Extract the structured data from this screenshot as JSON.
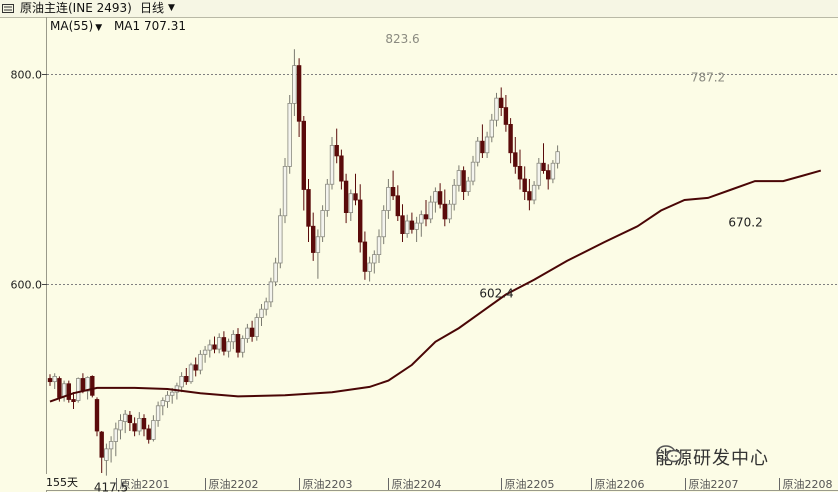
{
  "header": {
    "title": "原油主连(INE 2493)",
    "period": "日线"
  },
  "legend": {
    "ma_label": "MA(55)",
    "ma1_label": "MA1",
    "ma1_value": "707.31"
  },
  "watermark": {
    "text": "能源研发中心",
    "icon": "wechat-icon"
  },
  "day_count": "155天",
  "colors": {
    "up": "#cfcfcf",
    "down": "#5a0b0b",
    "ma": "#4a0606",
    "grid": "#808080"
  },
  "chart_data": {
    "type": "candlestick",
    "title": "",
    "y_ticks": [
      {
        "value": 600,
        "label": "600.0"
      },
      {
        "value": 800,
        "label": "800.0"
      }
    ],
    "ylim": [
      417,
      840
    ],
    "x_ticks": [
      {
        "index": 14,
        "label": "原油2201"
      },
      {
        "index": 33,
        "label": "原油2202"
      },
      {
        "index": 53,
        "label": "原油2203"
      },
      {
        "index": 72,
        "label": "原油2204"
      },
      {
        "index": 96,
        "label": "原油2205"
      },
      {
        "index": 115,
        "label": "原油2206"
      },
      {
        "index": 135,
        "label": "原油2207"
      },
      {
        "index": 155,
        "label": "原油2208"
      }
    ],
    "annotations": [
      {
        "index": 75,
        "value": 823.6,
        "label": "823.6",
        "position": "above",
        "style": "grey"
      },
      {
        "index": 140,
        "value": 787.2,
        "label": "787.2",
        "position": "above",
        "style": "grey"
      },
      {
        "index": 95,
        "value": 602.4,
        "label": "602.4",
        "position": "below",
        "style": "dark"
      },
      {
        "index": 148,
        "value": 670.2,
        "label": "670.2",
        "position": "below",
        "style": "dark"
      },
      {
        "index": 13,
        "value": 417.5,
        "label": "417.5",
        "position": "below",
        "style": "dark"
      }
    ],
    "candles": [
      [
        510,
        514,
        503,
        507
      ],
      [
        507,
        515,
        500,
        512
      ],
      [
        510,
        512,
        488,
        492
      ],
      [
        493,
        508,
        488,
        505
      ],
      [
        505,
        508,
        487,
        490
      ],
      [
        490,
        497,
        481,
        488
      ],
      [
        489,
        511,
        487,
        510
      ],
      [
        510,
        515,
        496,
        499
      ],
      [
        498,
        512,
        490,
        511
      ],
      [
        512,
        513,
        492,
        494
      ],
      [
        490,
        492,
        455,
        460
      ],
      [
        459,
        460,
        420,
        435
      ],
      [
        432,
        448,
        417.5,
        443
      ],
      [
        443,
        455,
        430,
        450
      ],
      [
        450,
        468,
        436,
        462
      ],
      [
        461,
        476,
        452,
        470
      ],
      [
        469,
        480,
        458,
        476
      ],
      [
        475,
        479,
        460,
        468
      ],
      [
        467,
        473,
        455,
        460
      ],
      [
        460,
        478,
        456,
        472
      ],
      [
        472,
        476,
        455,
        462
      ],
      [
        462,
        466,
        448,
        452
      ],
      [
        452,
        475,
        450,
        470
      ],
      [
        470,
        488,
        464,
        484
      ],
      [
        484,
        492,
        475,
        489
      ],
      [
        488,
        498,
        482,
        494
      ],
      [
        494,
        501,
        486,
        497
      ],
      [
        497,
        506,
        490,
        503
      ],
      [
        502,
        516,
        497,
        512
      ],
      [
        512,
        520,
        504,
        507
      ],
      [
        507,
        525,
        505,
        523
      ],
      [
        523,
        530,
        512,
        518
      ],
      [
        518,
        537,
        514,
        533
      ],
      [
        533,
        541,
        525,
        537
      ],
      [
        537,
        547,
        530,
        542
      ],
      [
        542,
        550,
        534,
        538
      ],
      [
        538,
        553,
        534,
        549
      ],
      [
        549,
        555,
        532,
        536
      ],
      [
        536,
        548,
        530,
        545
      ],
      [
        545,
        556,
        538,
        552
      ],
      [
        552,
        558,
        530,
        535
      ],
      [
        535,
        551,
        530,
        548
      ],
      [
        548,
        562,
        544,
        558
      ],
      [
        558,
        565,
        545,
        550
      ],
      [
        550,
        572,
        546,
        568
      ],
      [
        568,
        581,
        560,
        576
      ],
      [
        576,
        587,
        570,
        583
      ],
      [
        583,
        606,
        578,
        602
      ],
      [
        602,
        625,
        598,
        620
      ],
      [
        620,
        672,
        615,
        665
      ],
      [
        665,
        720,
        658,
        712
      ],
      [
        712,
        780,
        705,
        772
      ],
      [
        772,
        823.6,
        760,
        808
      ],
      [
        808,
        815,
        740,
        755
      ],
      [
        755,
        760,
        670,
        690
      ],
      [
        690,
        700,
        640,
        655
      ],
      [
        655,
        668,
        622,
        630
      ],
      [
        630,
        652,
        605,
        645
      ],
      [
        645,
        675,
        640,
        670
      ],
      [
        670,
        700,
        664,
        695
      ],
      [
        695,
        740,
        690,
        732
      ],
      [
        732,
        748,
        715,
        722
      ],
      [
        722,
        728,
        690,
        698
      ],
      [
        698,
        705,
        658,
        668
      ],
      [
        668,
        690,
        660,
        686
      ],
      [
        686,
        705,
        675,
        680
      ],
      [
        680,
        695,
        630,
        640
      ],
      [
        640,
        650,
        604,
        612
      ],
      [
        612,
        626,
        602.4,
        620
      ],
      [
        620,
        632,
        610,
        628
      ],
      [
        628,
        652,
        620,
        645
      ],
      [
        645,
        675,
        638,
        670
      ],
      [
        670,
        700,
        662,
        692
      ],
      [
        692,
        708,
        680,
        684
      ],
      [
        684,
        694,
        660,
        665
      ],
      [
        665,
        676,
        640,
        648
      ],
      [
        648,
        666,
        644,
        660
      ],
      [
        660,
        668,
        648,
        652
      ],
      [
        652,
        664,
        640,
        658
      ],
      [
        658,
        670,
        645,
        666
      ],
      [
        666,
        680,
        655,
        662
      ],
      [
        662,
        684,
        658,
        678
      ],
      [
        678,
        692,
        668,
        688
      ],
      [
        688,
        696,
        672,
        676
      ],
      [
        676,
        690,
        655,
        662
      ],
      [
        662,
        680,
        658,
        676
      ],
      [
        676,
        700,
        670,
        694
      ],
      [
        694,
        713,
        688,
        708
      ],
      [
        708,
        712,
        680,
        688
      ],
      [
        688,
        702,
        684,
        698
      ],
      [
        698,
        722,
        694,
        716
      ],
      [
        716,
        740,
        712,
        736
      ],
      [
        736,
        752,
        720,
        725
      ],
      [
        725,
        745,
        720,
        740
      ],
      [
        740,
        762,
        735,
        756
      ],
      [
        756,
        782,
        750,
        777
      ],
      [
        777,
        787.2,
        760,
        768
      ],
      [
        768,
        780,
        745,
        752
      ],
      [
        752,
        758,
        715,
        725
      ],
      [
        725,
        740,
        705,
        712
      ],
      [
        712,
        728,
        690,
        700
      ],
      [
        700,
        712,
        680,
        688
      ],
      [
        688,
        700,
        670.2,
        680
      ],
      [
        680,
        698,
        676,
        694
      ],
      [
        694,
        720,
        690,
        715
      ],
      [
        715,
        734,
        705,
        708
      ],
      [
        708,
        714,
        690,
        700
      ],
      [
        700,
        718,
        696,
        715
      ],
      [
        715,
        732,
        710,
        726
      ]
    ],
    "ma55": [
      [
        0,
        488
      ],
      [
        5,
        496
      ],
      [
        10,
        501
      ],
      [
        18,
        501
      ],
      [
        25,
        500
      ],
      [
        32,
        496
      ],
      [
        40,
        493
      ],
      [
        50,
        494
      ],
      [
        60,
        497
      ],
      [
        68,
        502
      ],
      [
        72,
        508
      ],
      [
        77,
        523
      ],
      [
        82,
        545
      ],
      [
        87,
        558
      ],
      [
        92,
        574
      ],
      [
        97,
        590
      ],
      [
        103,
        604
      ],
      [
        110,
        622
      ],
      [
        118,
        640
      ],
      [
        125,
        655
      ],
      [
        130,
        670
      ],
      [
        135,
        680
      ],
      [
        140,
        682
      ],
      [
        145,
        690
      ],
      [
        150,
        698
      ],
      [
        156,
        698
      ],
      [
        160,
        703
      ],
      [
        164,
        708
      ]
    ]
  }
}
